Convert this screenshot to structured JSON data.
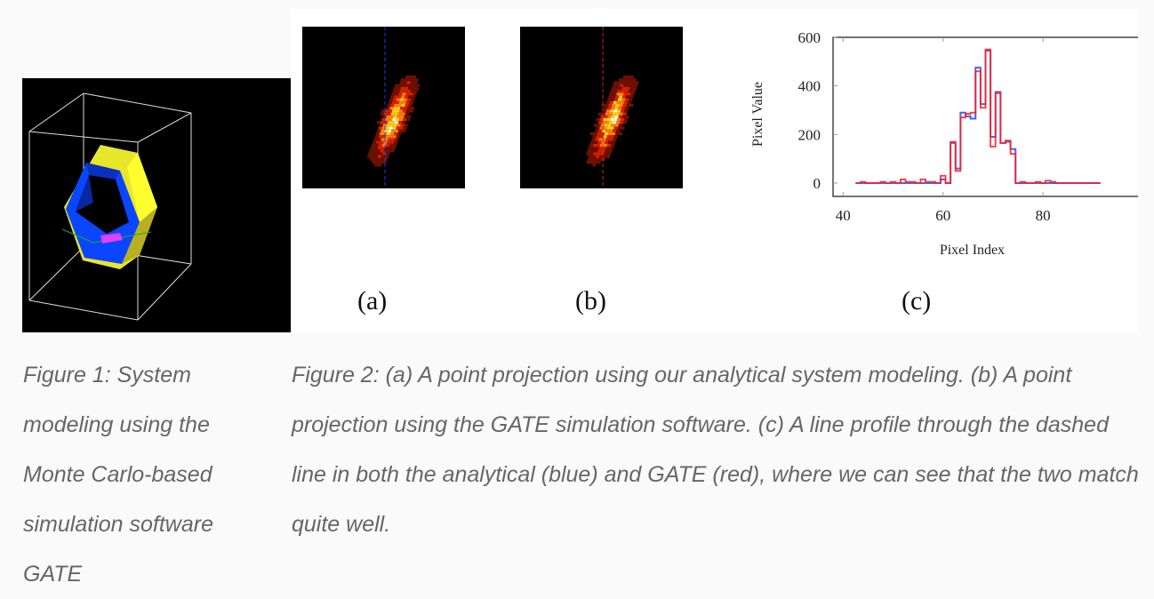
{
  "figure1": {
    "caption": "Figure 1: System modeling using the Monte Carlo-based simulation software GATE"
  },
  "figure2": {
    "panel_labels": [
      "(a)",
      "(b)",
      "(c)"
    ],
    "caption": "Figure 2: (a) A point projection using our analytical system modeling. (b) A point projection using the GATE simulation software. (c) A line profile through the dashed line in both the analytical (blue) and GATE (red), where we can see that the two match quite well.",
    "dashed_line_colors": {
      "a": "#1a3cff",
      "b": "#e02020"
    }
  },
  "chart_data": {
    "type": "line",
    "style": "step",
    "xlabel": "Pixel Index",
    "ylabel": "Pixel Value",
    "xlim": [
      38,
      99
    ],
    "ylim": [
      -55,
      600
    ],
    "xticks": [
      40,
      60,
      80
    ],
    "yticks": [
      0,
      200,
      400,
      600
    ],
    "grid": "ticks-only",
    "x": [
      43,
      44,
      45,
      46,
      47,
      48,
      49,
      50,
      51,
      52,
      53,
      54,
      55,
      56,
      57,
      58,
      59,
      60,
      61,
      62,
      63,
      64,
      65,
      66,
      67,
      68,
      69,
      70,
      71,
      72,
      73,
      74,
      75,
      76,
      77,
      78,
      79,
      80,
      81,
      82,
      83,
      84,
      85,
      86,
      87,
      88,
      89,
      90,
      91
    ],
    "series": [
      {
        "color": "#3050ff",
        "values": [
          0,
          0,
          0,
          0,
          0,
          0,
          0,
          0,
          0,
          0,
          0,
          0,
          0,
          0,
          0,
          0,
          0,
          15,
          0,
          165,
          60,
          290,
          275,
          265,
          475,
          325,
          545,
          190,
          375,
          165,
          170,
          140,
          0,
          0,
          0,
          0,
          0,
          0,
          0,
          0,
          0,
          0,
          0,
          0,
          0,
          0,
          0,
          0,
          0
        ]
      },
      {
        "color": "#ff2020",
        "values": [
          0,
          5,
          0,
          0,
          0,
          5,
          0,
          5,
          0,
          15,
          5,
          5,
          0,
          15,
          5,
          5,
          0,
          30,
          0,
          170,
          50,
          270,
          285,
          290,
          460,
          310,
          550,
          150,
          370,
          165,
          175,
          120,
          0,
          5,
          0,
          0,
          5,
          0,
          10,
          5,
          0,
          0,
          0,
          0,
          0,
          0,
          0,
          0,
          0
        ]
      }
    ]
  }
}
